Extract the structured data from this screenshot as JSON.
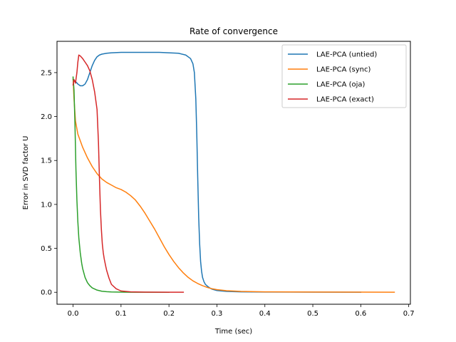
{
  "chart_data": {
    "type": "line",
    "title": "Rate of convergence",
    "xlabel": "Time (sec)",
    "ylabel": "Error in SVD factor U",
    "xlim": [
      -0.0335,
      0.7035
    ],
    "ylim": [
      -0.136,
      2.856
    ],
    "xticks": [
      0.0,
      0.1,
      0.2,
      0.3,
      0.4,
      0.5,
      0.6,
      0.7
    ],
    "xtick_labels": [
      "0.0",
      "0.1",
      "0.2",
      "0.3",
      "0.4",
      "0.5",
      "0.6",
      "0.7"
    ],
    "yticks": [
      0.0,
      0.5,
      1.0,
      1.5,
      2.0,
      2.5
    ],
    "ytick_labels": [
      "0.0",
      "0.5",
      "1.0",
      "1.5",
      "2.0",
      "2.5"
    ],
    "grid": false,
    "legend_position": "top-right",
    "series": [
      {
        "name": "LAE-PCA (untied)",
        "color": "#1f77b4",
        "x": [
          0.0,
          0.005,
          0.01,
          0.015,
          0.02,
          0.025,
          0.03,
          0.035,
          0.04,
          0.045,
          0.05,
          0.055,
          0.06,
          0.07,
          0.08,
          0.1,
          0.12,
          0.15,
          0.18,
          0.2,
          0.22,
          0.235,
          0.245,
          0.25,
          0.253,
          0.256,
          0.258,
          0.26,
          0.262,
          0.264,
          0.266,
          0.268,
          0.27,
          0.273,
          0.276,
          0.28,
          0.285,
          0.29,
          0.3,
          0.32,
          0.35,
          0.4,
          0.5,
          0.6
        ],
        "y": [
          2.42,
          2.4,
          2.37,
          2.35,
          2.35,
          2.37,
          2.42,
          2.5,
          2.58,
          2.64,
          2.68,
          2.7,
          2.71,
          2.72,
          2.725,
          2.73,
          2.73,
          2.73,
          2.73,
          2.725,
          2.72,
          2.7,
          2.66,
          2.6,
          2.5,
          2.2,
          1.8,
          1.3,
          0.85,
          0.55,
          0.35,
          0.24,
          0.17,
          0.12,
          0.09,
          0.07,
          0.05,
          0.035,
          0.02,
          0.01,
          0.005,
          0.003,
          0.002,
          0.001
        ]
      },
      {
        "name": "LAE-PCA (sync)",
        "color": "#ff7f0e",
        "x": [
          0.0,
          0.002,
          0.005,
          0.01,
          0.02,
          0.03,
          0.04,
          0.05,
          0.06,
          0.07,
          0.08,
          0.09,
          0.1,
          0.11,
          0.12,
          0.13,
          0.14,
          0.15,
          0.16,
          0.17,
          0.18,
          0.19,
          0.2,
          0.21,
          0.22,
          0.23,
          0.24,
          0.25,
          0.26,
          0.27,
          0.28,
          0.29,
          0.3,
          0.32,
          0.35,
          0.4,
          0.5,
          0.6,
          0.67
        ],
        "y": [
          2.44,
          2.2,
          1.95,
          1.8,
          1.65,
          1.53,
          1.43,
          1.35,
          1.29,
          1.25,
          1.22,
          1.19,
          1.17,
          1.14,
          1.1,
          1.05,
          0.98,
          0.9,
          0.81,
          0.72,
          0.62,
          0.52,
          0.43,
          0.35,
          0.28,
          0.22,
          0.17,
          0.13,
          0.1,
          0.075,
          0.055,
          0.04,
          0.03,
          0.018,
          0.01,
          0.005,
          0.003,
          0.002,
          0.001
        ]
      },
      {
        "name": "LAE-PCA (oja)",
        "color": "#2ca02c",
        "x": [
          0.0,
          0.002,
          0.004,
          0.006,
          0.008,
          0.01,
          0.012,
          0.015,
          0.018,
          0.02,
          0.025,
          0.03,
          0.035,
          0.04,
          0.05,
          0.06,
          0.07,
          0.08,
          0.1,
          0.12,
          0.15,
          0.2
        ],
        "y": [
          2.45,
          2.3,
          1.9,
          1.4,
          1.05,
          0.8,
          0.62,
          0.45,
          0.33,
          0.27,
          0.17,
          0.11,
          0.075,
          0.05,
          0.025,
          0.012,
          0.007,
          0.004,
          0.002,
          0.001,
          0.001,
          0.0
        ]
      },
      {
        "name": "LAE-PCA (exact)",
        "color": "#d62728",
        "x": [
          0.0,
          0.002,
          0.005,
          0.008,
          0.01,
          0.012,
          0.015,
          0.02,
          0.025,
          0.03,
          0.035,
          0.04,
          0.045,
          0.05,
          0.053,
          0.055,
          0.057,
          0.059,
          0.061,
          0.063,
          0.065,
          0.068,
          0.07,
          0.075,
          0.08,
          0.09,
          0.1,
          0.12,
          0.15,
          0.2,
          0.23
        ],
        "y": [
          2.36,
          2.42,
          2.38,
          2.5,
          2.62,
          2.7,
          2.69,
          2.66,
          2.62,
          2.58,
          2.52,
          2.42,
          2.28,
          2.08,
          1.7,
          1.3,
          0.95,
          0.72,
          0.55,
          0.45,
          0.38,
          0.3,
          0.25,
          0.16,
          0.09,
          0.04,
          0.015,
          0.005,
          0.002,
          0.001,
          0.001
        ]
      }
    ]
  }
}
